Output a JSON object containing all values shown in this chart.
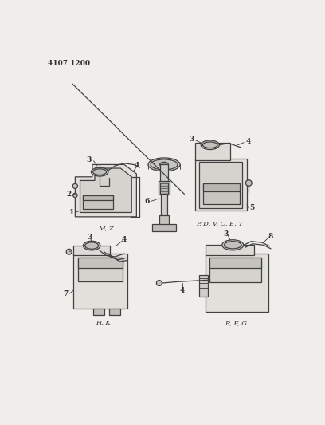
{
  "title": "4107 1200",
  "bg": "#f0eeea",
  "lc": "#404040",
  "tc": "#303030",
  "lw": 0.9,
  "labels": {
    "mz": "M, Z",
    "pdvcet": "P, D, V, C, E, T",
    "hk": "H, K",
    "rfg": "R, F, G"
  }
}
